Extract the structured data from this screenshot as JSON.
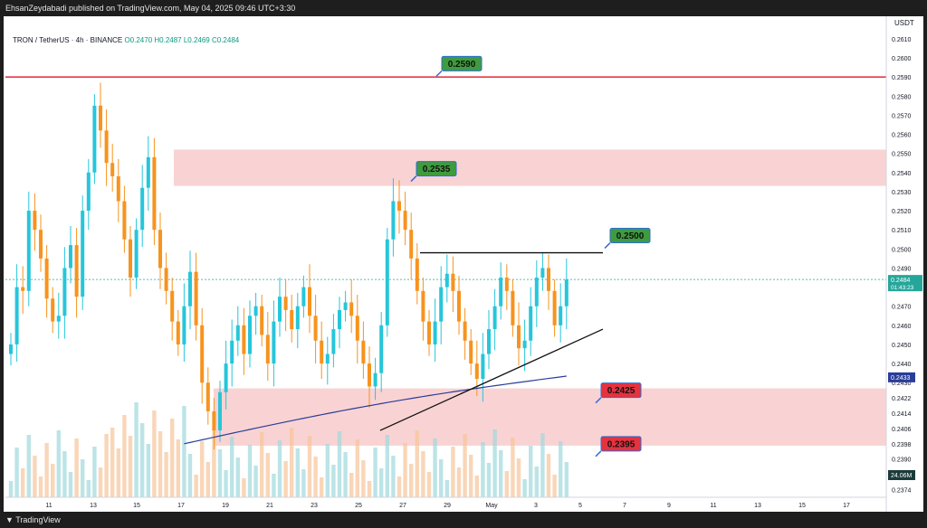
{
  "header": {
    "publish_line": "EhsanZeydabadi published on TradingView.com, May 04, 2025 09:46 UTC+3:30"
  },
  "legend": {
    "symbol": "TRON / TetherUS · 4h · BINANCE",
    "ohlc": "O0.2470 H0.2487 L0.2469 C0.2484"
  },
  "footer": {
    "brand": "TradingView"
  },
  "colors": {
    "up": "#26c6da",
    "down": "#f7931e",
    "ma": "#2a3d9a",
    "resistance": "#e53945",
    "zone": "#f8c8c8",
    "green_label": "#3f9b3f",
    "red_label": "#e5323e"
  },
  "chart_data": {
    "type": "candlestick",
    "currency": "USDT",
    "ylim": [
      0.237,
      0.2618
    ],
    "y_ticks": [
      "0.2610",
      "0.2600",
      "0.2590",
      "0.2580",
      "0.2570",
      "0.2560",
      "0.2550",
      "0.2540",
      "0.2530",
      "0.2520",
      "0.2510",
      "0.2500",
      "0.2490",
      "0.2470",
      "0.2460",
      "0.2450",
      "0.2440",
      "0.2430",
      "0.2422",
      "0.2414",
      "0.2406",
      "0.2398",
      "0.2390",
      "0.2374"
    ],
    "x_ticks": [
      "11",
      "13",
      "15",
      "17",
      "19",
      "21",
      "23",
      "25",
      "27",
      "29",
      "May",
      "3",
      "5",
      "7",
      "9",
      "11",
      "13",
      "15",
      "17"
    ],
    "price_tag": {
      "value": "0.2484",
      "countdown": "01:43:23"
    },
    "ma_tag": "0.2433",
    "volume_tag": "24.06M",
    "levels": [
      {
        "value": 0.259,
        "label": "0.2590",
        "kind": "resistance-line"
      },
      {
        "value": 0.2535,
        "label": "0.2535",
        "kind": "green"
      },
      {
        "value": 0.25,
        "label": "0.2500",
        "kind": "green"
      },
      {
        "value": 0.2425,
        "label": "0.2425",
        "kind": "red"
      },
      {
        "value": 0.2395,
        "label": "0.2395",
        "kind": "red"
      }
    ],
    "zones": [
      {
        "from": 0.2533,
        "to": 0.2552
      },
      {
        "from": 0.2397,
        "to": 0.2427
      }
    ],
    "close_series": [
      0.245,
      0.248,
      0.2478,
      0.252,
      0.251,
      0.2495,
      0.2474,
      0.2462,
      0.2465,
      0.249,
      0.2502,
      0.2475,
      0.252,
      0.254,
      0.2575,
      0.2562,
      0.2545,
      0.2538,
      0.2525,
      0.2505,
      0.2485,
      0.251,
      0.2532,
      0.2548,
      0.251,
      0.249,
      0.2478,
      0.2462,
      0.245,
      0.247,
      0.2488,
      0.246,
      0.243,
      0.2415,
      0.2405,
      0.2425,
      0.244,
      0.2452,
      0.246,
      0.2445,
      0.2465,
      0.247,
      0.2455,
      0.244,
      0.2462,
      0.2475,
      0.2468,
      0.2458,
      0.247,
      0.248,
      0.2465,
      0.2452,
      0.244,
      0.2445,
      0.2458,
      0.2468,
      0.2472,
      0.2465,
      0.2452,
      0.244,
      0.2428,
      0.2435,
      0.246,
      0.2505,
      0.2525,
      0.252,
      0.251,
      0.2495,
      0.2478,
      0.2462,
      0.245,
      0.2462,
      0.248,
      0.2487,
      0.2478,
      0.2462,
      0.2452,
      0.244,
      0.2432,
      0.2445,
      0.2458,
      0.247,
      0.2485,
      0.2478,
      0.246,
      0.2448,
      0.2452,
      0.247,
      0.2485,
      0.249,
      0.2478,
      0.246,
      0.247,
      0.2484
    ]
  }
}
